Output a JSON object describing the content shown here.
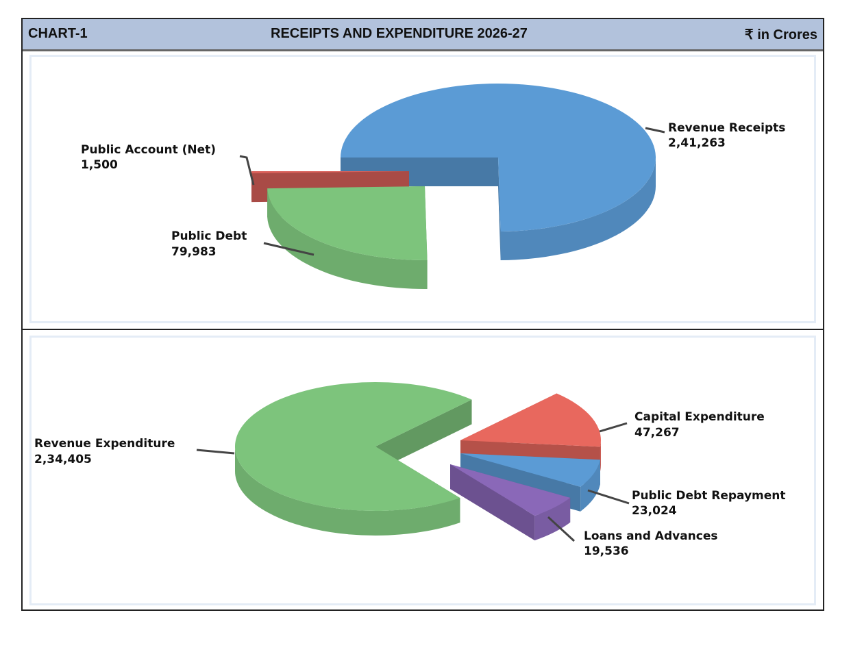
{
  "header": {
    "chart_id": "CHART-1",
    "title": "RECEIPTS AND EXPENDITURE 2026-27",
    "unit": "₹ in Crores"
  },
  "chart_data": [
    {
      "type": "pie",
      "title": "Receipts",
      "unit": "₹ in Crores",
      "labels": [
        "Revenue Receipts",
        "Public Debt",
        "Public Account (Net)"
      ],
      "values_text": [
        "2,41,263",
        "79,983",
        "1,500"
      ],
      "values": [
        241263,
        79983,
        1500
      ],
      "colors": [
        "#5b9bd5",
        "#7dc47c",
        "#d9605a"
      ]
    },
    {
      "type": "pie",
      "title": "Expenditure",
      "unit": "₹ in Crores",
      "labels": [
        "Revenue Expenditure",
        "Capital Expenditure",
        "Public Debt Repayment",
        "Loans and Advances"
      ],
      "values_text": [
        "2,34,405",
        "47,267",
        "23,024",
        "19,536"
      ],
      "values": [
        234405,
        47267,
        23024,
        19536
      ],
      "colors": [
        "#7dc47c",
        "#e8685e",
        "#5b9bd5",
        "#8a68b8"
      ]
    }
  ]
}
